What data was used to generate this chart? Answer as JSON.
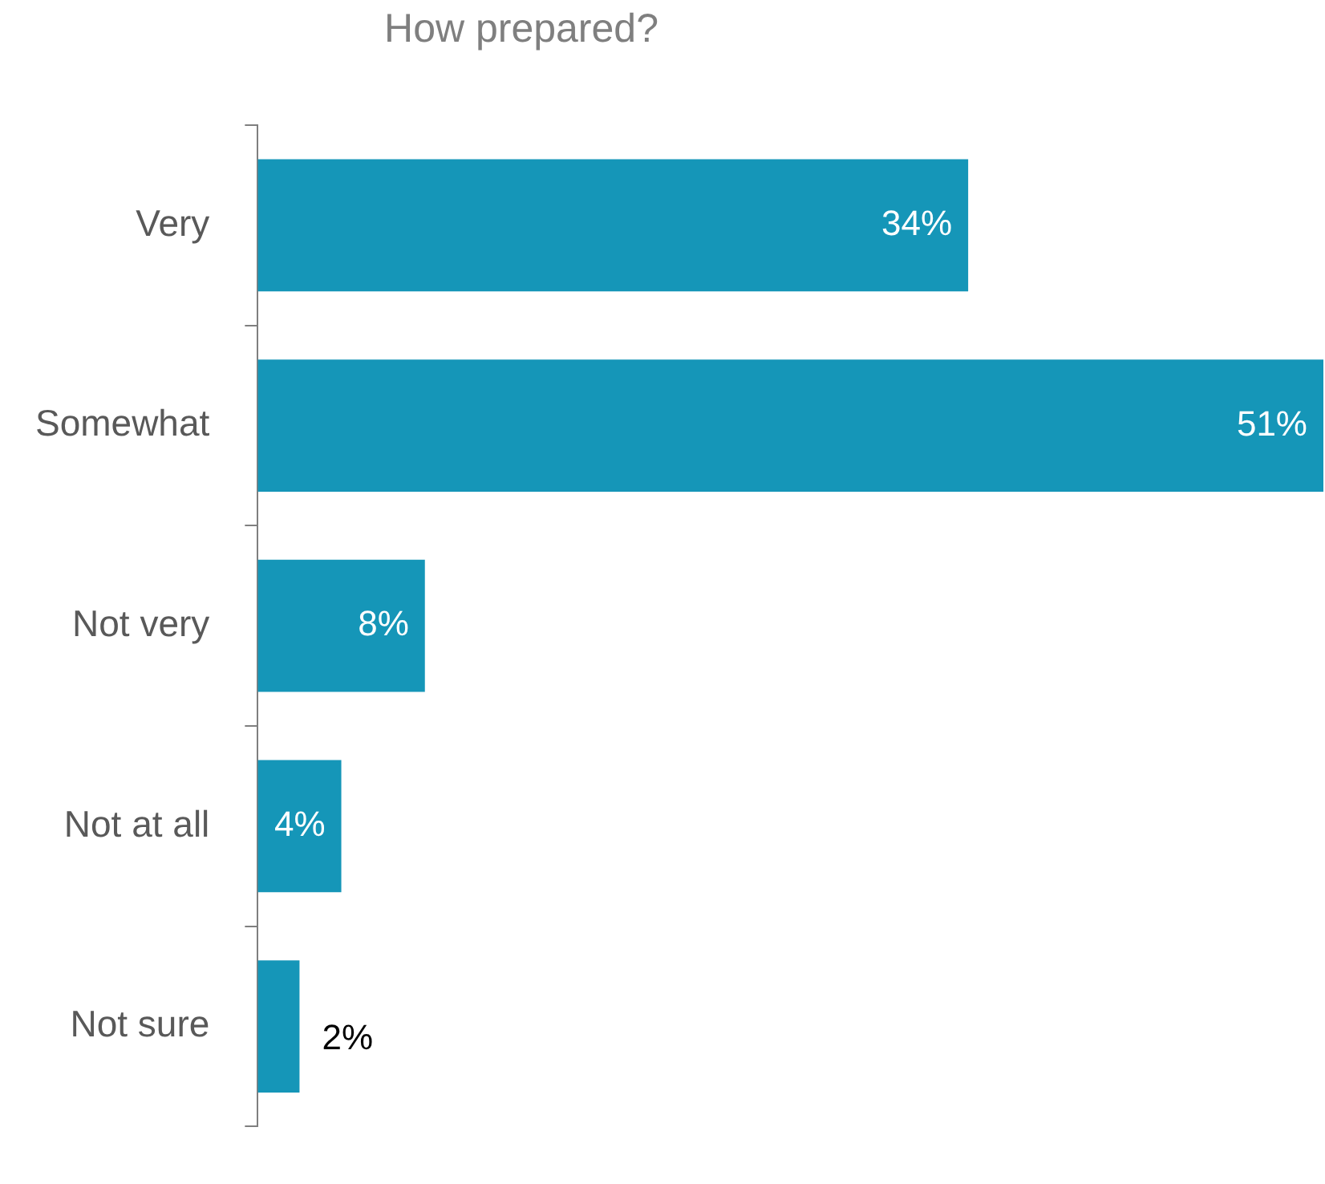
{
  "chart_data": {
    "type": "bar",
    "orientation": "horizontal",
    "title": "How prepared?",
    "categories": [
      "Very",
      "Somewhat",
      "Not very",
      "Not at all",
      "Not sure"
    ],
    "values": [
      34,
      51,
      8,
      4,
      2
    ],
    "color": "#1596b8",
    "value_labels": [
      "34%",
      "51%",
      "8%",
      "4%",
      "2%"
    ],
    "legend": false
  }
}
